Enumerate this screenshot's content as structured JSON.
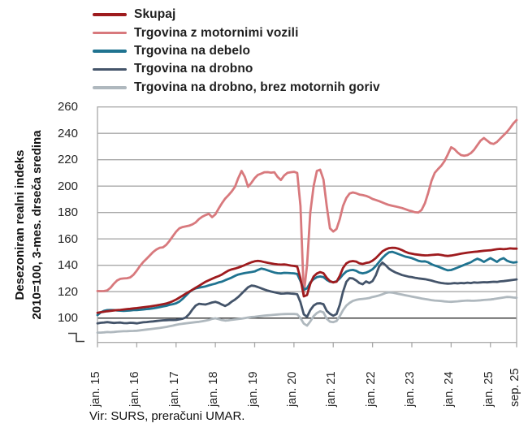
{
  "chart_data": {
    "type": "line",
    "ylabel_line1": "Desezoniran realni indeks",
    "ylabel_line2": "2010=100, 3-mes. drseča sredina",
    "source": "Vir: SURS, preračuni UMAR.",
    "x_tick_labels": [
      "jan. 15",
      "jan. 16",
      "jan. 17",
      "jan. 18",
      "jan. 19",
      "jan. 20",
      "jan. 21",
      "jan. 22",
      "jan. 23",
      "jan. 24",
      "jan. 25",
      "sep. 25"
    ],
    "x_tick_month_indices": [
      0,
      12,
      24,
      36,
      48,
      60,
      72,
      84,
      96,
      108,
      120,
      128
    ],
    "y_ticks": [
      100,
      120,
      140,
      160,
      180,
      200,
      220,
      240,
      260
    ],
    "y_min_visible": 100,
    "y_max_visible": 260,
    "y_axis_break": true,
    "baseline_value": 100,
    "legend_position": "top-left",
    "grid": "horizontal",
    "colors": {
      "grid": "#A8A8A8",
      "frame": "#A8A8A8",
      "baseline": "#3F3F3F",
      "text": "#262626"
    },
    "series": [
      {
        "name": "Skupaj",
        "color": "#9E1B1E",
        "values": [
          104.0,
          104.4,
          104.8,
          105.2,
          105.5,
          105.8,
          106.0,
          106.2,
          106.5,
          106.8,
          107.0,
          107.3,
          107.6,
          107.9,
          108.2,
          108.5,
          108.8,
          109.2,
          109.6,
          110.0,
          110.5,
          111.0,
          111.8,
          112.8,
          114.0,
          115.5,
          117.0,
          118.5,
          120.0,
          121.5,
          123.0,
          124.5,
          126.0,
          127.5,
          128.7,
          129.8,
          130.8,
          131.8,
          133.0,
          134.5,
          136.0,
          136.9,
          137.5,
          138.3,
          139.2,
          140.2,
          141.3,
          142.3,
          143.0,
          143.4,
          143.0,
          142.4,
          141.9,
          141.4,
          141.0,
          140.7,
          140.5,
          140.6,
          140.3,
          139.8,
          139.5,
          139.0,
          130.0,
          116.4,
          117.5,
          126.0,
          131.5,
          133.8,
          134.8,
          134.0,
          130.5,
          128.0,
          127.0,
          127.6,
          132.0,
          138.0,
          141.5,
          142.8,
          143.2,
          142.8,
          141.5,
          141.0,
          141.8,
          142.2,
          143.5,
          145.5,
          148.0,
          150.5,
          152.0,
          153.0,
          153.3,
          153.2,
          152.5,
          151.5,
          150.3,
          149.3,
          148.8,
          148.3,
          148.0,
          147.7,
          147.5,
          147.6,
          147.8,
          148.0,
          148.2,
          147.8,
          147.3,
          147.1,
          147.4,
          147.8,
          148.3,
          148.8,
          149.2,
          149.6,
          149.9,
          150.2,
          150.4,
          150.7,
          151.0,
          151.2,
          151.4,
          151.8,
          152.2,
          152.4,
          152.2,
          152.4,
          152.8,
          152.6,
          152.6
        ]
      },
      {
        "name": "Trgovina z motornimi vozili",
        "color": "#D8797D",
        "values": [
          120.5,
          120.4,
          120.5,
          121.0,
          123.0,
          126.0,
          128.5,
          129.7,
          130.0,
          130.2,
          130.8,
          132.8,
          136.0,
          139.5,
          142.5,
          145.0,
          147.5,
          150.0,
          152.0,
          153.3,
          153.6,
          155.5,
          158.5,
          162.0,
          165.5,
          168.0,
          169.0,
          169.5,
          170.0,
          171.0,
          172.5,
          175.0,
          176.8,
          178.0,
          179.0,
          176.5,
          178.5,
          183.0,
          187.0,
          190.5,
          193.2,
          196.0,
          199.5,
          206.0,
          211.5,
          207.0,
          199.5,
          202.5,
          206.0,
          208.5,
          209.5,
          210.5,
          210.6,
          210.2,
          210.5,
          207.0,
          204.6,
          208.0,
          210.0,
          210.5,
          210.8,
          210.0,
          185.0,
          118.3,
          140.0,
          180.0,
          200.0,
          211.5,
          212.5,
          205.0,
          185.0,
          168.0,
          165.6,
          167.5,
          175.0,
          185.0,
          191.0,
          194.4,
          195.2,
          194.6,
          193.6,
          193.2,
          192.6,
          191.6,
          190.3,
          189.5,
          188.6,
          187.6,
          186.6,
          185.7,
          185.1,
          184.6,
          184.0,
          183.4,
          182.5,
          181.6,
          181.0,
          180.2,
          180.0,
          182.0,
          187.0,
          195.0,
          204.0,
          210.0,
          213.0,
          215.5,
          219.0,
          224.0,
          229.5,
          228.0,
          225.5,
          223.5,
          223.0,
          223.5,
          225.0,
          227.5,
          231.0,
          234.5,
          236.4,
          234.5,
          232.5,
          232.0,
          233.5,
          236.0,
          238.5,
          241.0,
          244.0,
          247.5,
          250.0
        ]
      },
      {
        "name": "Trgovina na debelo",
        "color": "#1F7390",
        "values": [
          102.3,
          104.3,
          105.5,
          106.0,
          106.1,
          106.0,
          105.8,
          105.6,
          105.4,
          105.6,
          105.8,
          106.0,
          106.0,
          106.3,
          106.5,
          106.8,
          107.0,
          107.4,
          107.8,
          108.3,
          108.8,
          109.3,
          110.0,
          110.5,
          111.2,
          112.5,
          114.5,
          117.0,
          119.5,
          121.5,
          122.5,
          123.0,
          123.5,
          124.0,
          124.8,
          125.5,
          126.1,
          127.0,
          127.6,
          128.7,
          129.7,
          130.7,
          132.0,
          133.0,
          133.6,
          134.1,
          134.5,
          134.9,
          135.3,
          136.5,
          137.5,
          137.0,
          136.2,
          135.3,
          134.5,
          134.0,
          133.9,
          134.3,
          134.2,
          134.0,
          133.9,
          133.4,
          128.0,
          121.5,
          122.5,
          127.0,
          129.5,
          131.0,
          131.5,
          131.0,
          129.0,
          127.6,
          127.2,
          127.8,
          130.0,
          133.0,
          135.3,
          136.2,
          136.5,
          135.8,
          134.4,
          133.9,
          134.4,
          135.5,
          137.0,
          139.5,
          142.5,
          145.5,
          148.0,
          149.8,
          150.2,
          149.4,
          148.4,
          147.5,
          146.6,
          146.0,
          145.4,
          144.4,
          143.4,
          142.9,
          143.0,
          142.2,
          140.8,
          139.8,
          139.0,
          138.0,
          137.0,
          136.2,
          136.4,
          137.3,
          138.3,
          139.3,
          140.3,
          141.3,
          142.3,
          143.8,
          145.0,
          144.0,
          142.6,
          144.0,
          145.4,
          144.0,
          142.6,
          144.4,
          145.4,
          143.6,
          142.6,
          142.0,
          142.4
        ]
      },
      {
        "name": "Trgovina na drobno",
        "color": "#44546A",
        "values": [
          96.0,
          96.4,
          96.6,
          96.9,
          96.6,
          96.3,
          96.5,
          96.6,
          96.2,
          96.1,
          96.4,
          96.3,
          96.0,
          96.4,
          96.8,
          97.0,
          97.3,
          97.5,
          97.8,
          98.0,
          98.3,
          98.4,
          98.5,
          98.5,
          98.6,
          99.0,
          99.5,
          100.5,
          103.0,
          106.5,
          109.5,
          110.8,
          110.5,
          110.3,
          111.0,
          111.8,
          112.3,
          111.5,
          110.2,
          109.2,
          110.5,
          112.5,
          114.0,
          116.0,
          118.5,
          121.0,
          123.3,
          124.6,
          124.3,
          123.5,
          122.5,
          121.6,
          120.8,
          120.1,
          119.6,
          119.1,
          118.5,
          118.6,
          118.8,
          118.6,
          118.4,
          118.0,
          112.0,
          102.8,
          101.0,
          106.0,
          109.5,
          111.0,
          111.2,
          110.5,
          105.5,
          103.2,
          101.8,
          103.0,
          110.0,
          120.0,
          127.5,
          130.3,
          130.0,
          128.5,
          126.5,
          125.6,
          127.8,
          126.6,
          128.0,
          132.5,
          139.0,
          142.0,
          140.0,
          137.5,
          135.9,
          134.6,
          133.6,
          132.6,
          132.0,
          131.4,
          131.0,
          130.5,
          130.1,
          129.8,
          129.5,
          129.0,
          128.4,
          127.7,
          127.1,
          126.6,
          126.3,
          126.1,
          126.2,
          126.5,
          126.3,
          126.6,
          126.4,
          126.8,
          126.5,
          127.0,
          126.8,
          127.0,
          127.2,
          127.1,
          127.3,
          127.5,
          127.4,
          127.8,
          128.0,
          128.3,
          128.6,
          129.0,
          129.3
        ]
      },
      {
        "name": "Trgovina na drobno, brez motornih goriv",
        "color": "#AFB8BE",
        "values": [
          89.0,
          89.0,
          89.2,
          89.4,
          89.3,
          89.5,
          89.7,
          89.9,
          90.0,
          90.1,
          90.2,
          90.3,
          90.4,
          90.7,
          91.0,
          91.3,
          91.6,
          91.9,
          92.2,
          92.5,
          92.9,
          93.3,
          93.8,
          94.3,
          94.9,
          95.3,
          95.7,
          96.0,
          96.3,
          96.6,
          96.9,
          97.2,
          97.6,
          98.0,
          98.6,
          99.4,
          99.8,
          99.2,
          98.5,
          98.1,
          98.3,
          98.7,
          99.0,
          99.3,
          99.6,
          100.0,
          100.4,
          100.8,
          101.0,
          101.3,
          101.6,
          101.9,
          102.1,
          102.3,
          102.5,
          102.7,
          102.9,
          103.0,
          103.1,
          103.1,
          103.1,
          102.9,
          100.0,
          95.8,
          94.3,
          97.5,
          101.5,
          103.8,
          105.2,
          104.3,
          99.5,
          97.3,
          96.9,
          97.8,
          101.5,
          106.0,
          109.5,
          111.5,
          113.0,
          113.8,
          114.3,
          114.5,
          114.8,
          115.2,
          116.0,
          116.5,
          117.2,
          118.0,
          119.0,
          119.5,
          119.3,
          118.8,
          118.3,
          117.8,
          117.3,
          116.8,
          116.3,
          115.8,
          115.3,
          114.8,
          114.4,
          114.0,
          113.6,
          113.3,
          113.1,
          112.9,
          112.6,
          112.4,
          112.3,
          112.5,
          112.7,
          112.9,
          113.1,
          113.3,
          113.2,
          113.1,
          113.3,
          113.5,
          113.7,
          113.9,
          114.1,
          114.4,
          114.8,
          115.2,
          115.6,
          116.0,
          115.9,
          115.6,
          115.4
        ]
      }
    ]
  }
}
